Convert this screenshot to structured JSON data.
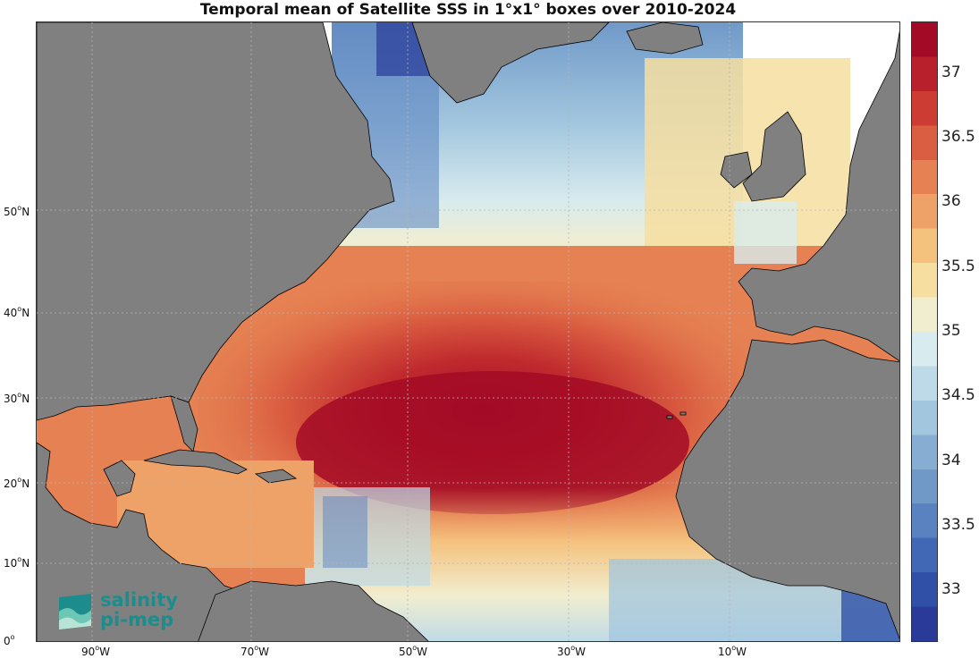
{
  "title": "Temporal mean of Satellite SSS in 1°x1° boxes over 2010-2024",
  "lat_labels": [
    "50",
    "40",
    "30",
    "20",
    "10",
    "0"
  ],
  "lon_labels": [
    "90",
    "70",
    "50",
    "30",
    "10"
  ],
  "lat_suffix": "N",
  "lon_suffix": "W",
  "colorbar": {
    "ticks": [
      "37",
      "36.5",
      "36",
      "35.5",
      "35",
      "34.5",
      "34",
      "33.5",
      "33"
    ],
    "range": [
      32.6,
      37.4
    ],
    "colors": [
      "#2a3a98",
      "#3050a8",
      "#4068b4",
      "#5a82c0",
      "#7099c8",
      "#87aed2",
      "#a2c6de",
      "#bedae8",
      "#d8ebee",
      "#f1eed0",
      "#f6dea0",
      "#f5c27e",
      "#efa268",
      "#e58152",
      "#da5e41",
      "#cc3c33",
      "#b8202c",
      "#a30a26"
    ]
  },
  "logo": {
    "line1": "salinity",
    "line2": "pi-mep"
  },
  "colors": {
    "land": "#808080",
    "nodata": "#ffffff",
    "coast": "#000000",
    "grid": "#b5b5b5"
  }
}
